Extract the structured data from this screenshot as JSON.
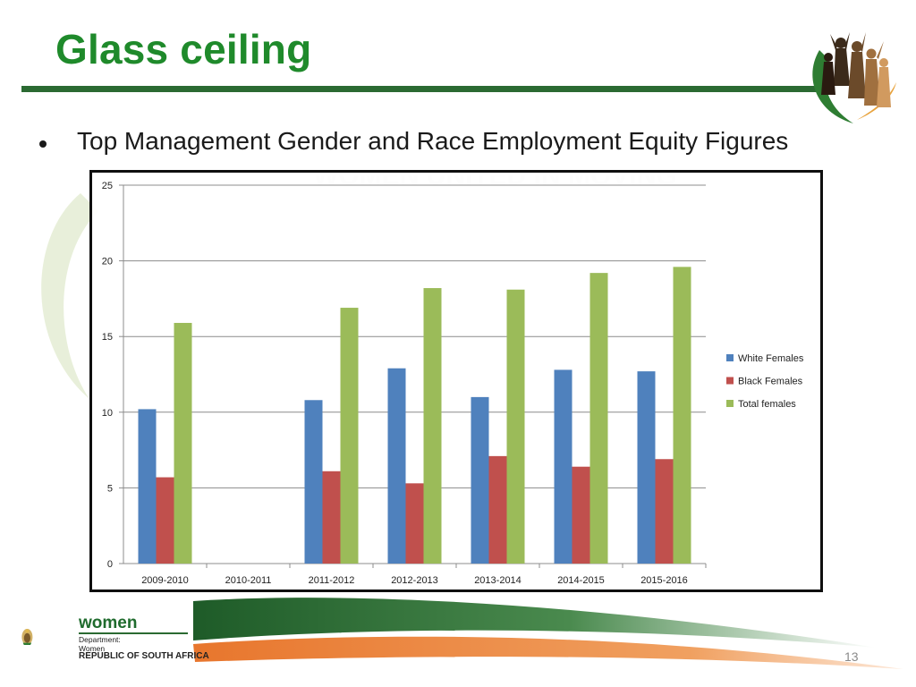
{
  "slide": {
    "title": "Glass ceiling",
    "bullet": "Top Management Gender and Race Employment Equity Figures",
    "page_number": "13"
  },
  "footer": {
    "brand": "women",
    "department_line1": "Department:",
    "department_line2": "Women",
    "country": "REPUBLIC OF SOUTH AFRICA"
  },
  "colors": {
    "title_green": "#1f8a2b",
    "rule_green": "#2b6a32",
    "white_females": "#4f81bd",
    "black_females": "#c0504d",
    "total_females": "#9bbb59",
    "swoosh_orange": "#e8762d"
  },
  "chart_data": {
    "type": "bar",
    "title": "",
    "xlabel": "",
    "ylabel": "",
    "ylim": [
      0,
      25
    ],
    "yticks": [
      "0",
      "5",
      "10",
      "15",
      "20",
      "25"
    ],
    "grid": true,
    "legend_position": "right",
    "categories": [
      "2009-2010",
      "2010-2011",
      "2011-2012",
      "2012-2013",
      "2013-2014",
      "2014-2015",
      "2015-2016"
    ],
    "series": [
      {
        "name": "White Females",
        "color": "#4f81bd",
        "values": [
          10.2,
          null,
          10.8,
          12.9,
          11.0,
          12.8,
          12.7
        ]
      },
      {
        "name": "Black Females",
        "color": "#c0504d",
        "values": [
          5.7,
          null,
          6.1,
          5.3,
          7.1,
          6.4,
          6.9
        ]
      },
      {
        "name": "Total females",
        "color": "#9bbb59",
        "values": [
          15.9,
          null,
          16.9,
          18.2,
          18.1,
          19.2,
          19.6
        ]
      }
    ]
  }
}
